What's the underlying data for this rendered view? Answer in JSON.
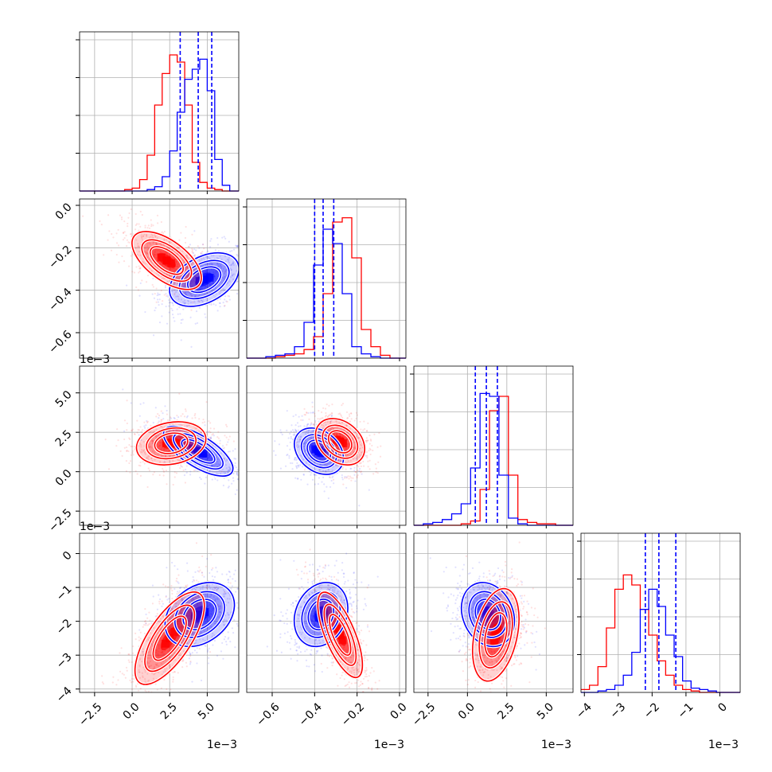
{
  "chart_data": {
    "type": "corner",
    "title": "",
    "n_params": 4,
    "series": [
      {
        "name": "",
        "color": "#ff0000"
      },
      {
        "name": "",
        "color": "#0000ff"
      }
    ],
    "axis_ranges": [
      [
        -0.0035,
        0.0071
      ],
      [
        -0.00072,
        3e-05
      ],
      [
        -0.0034,
        0.0067
      ],
      [
        -0.0041,
        0.0006
      ]
    ],
    "axis_ticks": [
      {
        "values": [
          -0.0025,
          0.0,
          0.0025,
          0.005
        ],
        "labels": [
          "−2.5",
          "0.0",
          "2.5",
          "5.0"
        ],
        "offset": "1e−3"
      },
      {
        "values": [
          -0.0006,
          -0.0004,
          -0.0002,
          0.0
        ],
        "labels": [
          "−0.6",
          "−0.4",
          "−0.2",
          "0.0"
        ],
        "offset": "1e−3"
      },
      {
        "values": [
          -0.0025,
          0.0,
          0.0025,
          0.005
        ],
        "labels": [
          "−2.5",
          "0.0",
          "2.5",
          "5.0"
        ],
        "offset": "1e−3"
      },
      {
        "values": [
          -0.004,
          -0.003,
          -0.002,
          -0.001,
          0.0
        ],
        "labels": [
          "−4",
          "−3",
          "−2",
          "−1",
          "0"
        ],
        "offset": "1e−3"
      }
    ],
    "marginals": [
      {
        "bin_edges": [
          -0.0035,
          -0.003,
          -0.0025,
          -0.002,
          -0.0015,
          -0.001,
          -0.0005,
          0.0,
          0.0005,
          0.001,
          0.0015,
          0.002,
          0.0025,
          0.003,
          0.0035,
          0.004,
          0.0045,
          0.005,
          0.0055,
          0.006,
          0.0065,
          0.0071
        ],
        "red_counts": [
          0,
          0,
          0,
          0,
          0,
          0,
          1,
          2,
          8,
          25,
          60,
          82,
          95,
          90,
          60,
          20,
          6,
          2,
          1,
          0,
          0
        ],
        "blue_counts": [
          0,
          0,
          0,
          0,
          0,
          0,
          0,
          0,
          0,
          1,
          3,
          10,
          28,
          55,
          78,
          85,
          92,
          70,
          22,
          4,
          0
        ],
        "ylim": [
          0,
          100
        ],
        "quantiles": [
          0.0032,
          0.0044,
          0.0053
        ]
      },
      {
        "bin_edges": [
          -0.00072,
          -0.000675,
          -0.00063,
          -0.000585,
          -0.00054,
          -0.000495,
          -0.00045,
          -0.000405,
          -0.00036,
          -0.000315,
          -0.00027,
          -0.000225,
          -0.00018,
          -0.000135,
          -9e-05,
          -4.5e-05,
          0.0,
          3e-05
        ],
        "red_counts": [
          0,
          0,
          0,
          1,
          2,
          3,
          6,
          15,
          45,
          95,
          98,
          70,
          20,
          8,
          2,
          0,
          0
        ],
        "blue_counts": [
          0,
          0,
          1,
          2,
          3,
          8,
          25,
          65,
          90,
          80,
          45,
          8,
          3,
          1,
          0,
          0,
          0
        ],
        "ylim": [
          0,
          100
        ],
        "quantiles": [
          -0.0004,
          -0.00036,
          -0.00031
        ]
      },
      {
        "bin_edges": [
          -0.0034,
          -0.0028,
          -0.0022,
          -0.0016,
          -0.001,
          -0.0004,
          0.0002,
          0.0008,
          0.0014,
          0.002,
          0.0026,
          0.0032,
          0.0038,
          0.0044,
          0.005,
          0.0056,
          0.0062,
          0.0067
        ],
        "red_counts": [
          0,
          0,
          0,
          0,
          0,
          1,
          3,
          25,
          80,
          90,
          35,
          4,
          2,
          1,
          1,
          0,
          0
        ],
        "blue_counts": [
          0,
          1,
          2,
          4,
          8,
          15,
          40,
          92,
          90,
          35,
          5,
          1,
          0,
          0,
          0,
          0,
          0
        ],
        "ylim": [
          0,
          100
        ],
        "quantiles": [
          0.0005,
          0.0012,
          0.0019
        ]
      },
      {
        "bin_edges": [
          -0.0041,
          -0.00385,
          -0.0036,
          -0.00335,
          -0.0031,
          -0.00285,
          -0.0026,
          -0.00235,
          -0.0021,
          -0.00185,
          -0.0016,
          -0.00135,
          -0.0011,
          -0.00085,
          -0.0006,
          -0.00035,
          -0.0001,
          0.0001,
          0.0006
        ],
        "red_counts": [
          2,
          5,
          18,
          45,
          72,
          82,
          75,
          58,
          40,
          22,
          12,
          5,
          2,
          1,
          0,
          0,
          0,
          0
        ],
        "blue_counts": [
          0,
          0,
          1,
          2,
          5,
          12,
          28,
          58,
          72,
          60,
          40,
          25,
          8,
          3,
          2,
          1,
          0,
          0
        ],
        "ylim": [
          0,
          100
        ],
        "quantiles": [
          -0.0022,
          -0.0018,
          -0.0013
        ]
      }
    ],
    "joints": [
      {
        "x": 0,
        "y": 1,
        "red": {
          "mean": [
            0.0023,
            -0.00026
          ],
          "sd": [
            0.0011,
            6.5e-05
          ],
          "rho": -0.6
        },
        "blue": {
          "mean": [
            0.0048,
            -0.00035
          ],
          "sd": [
            0.0011,
            6e-05
          ],
          "rho": 0.4
        }
      },
      {
        "x": 0,
        "y": 2,
        "red": {
          "mean": [
            0.0026,
            0.0018
          ],
          "sd": [
            0.0011,
            0.00065
          ],
          "rho": 0.2
        },
        "blue": {
          "mean": [
            0.0044,
            0.0013
          ],
          "sd": [
            0.0011,
            0.00075
          ],
          "rho": -0.7
        }
      },
      {
        "x": 1,
        "y": 2,
        "red": {
          "mean": [
            -0.00028,
            0.0019
          ],
          "sd": [
            5.5e-05,
            0.0007
          ],
          "rho": -0.3
        },
        "blue": {
          "mean": [
            -0.00038,
            0.0013
          ],
          "sd": [
            5.5e-05,
            0.0007
          ],
          "rho": -0.3
        }
      },
      {
        "x": 0,
        "y": 3,
        "red": {
          "mean": [
            0.0025,
            -0.0025
          ],
          "sd": [
            0.0011,
            0.00065
          ],
          "rho": 0.7
        },
        "blue": {
          "mean": [
            0.0045,
            -0.0018
          ],
          "sd": [
            0.0011,
            0.00045
          ],
          "rho": 0.3
        }
      },
      {
        "x": 1,
        "y": 3,
        "red": {
          "mean": [
            -0.00028,
            -0.0024
          ],
          "sd": [
            5e-05,
            0.0006
          ],
          "rho": -0.7
        },
        "blue": {
          "mean": [
            -0.00037,
            -0.0018
          ],
          "sd": [
            6e-05,
            0.00045
          ],
          "rho": 0.2
        }
      },
      {
        "x": 2,
        "y": 3,
        "red": {
          "mean": [
            0.0018,
            -0.0024
          ],
          "sd": [
            0.0007,
            0.00065
          ],
          "rho": 0.35
        },
        "blue": {
          "mean": [
            0.0013,
            -0.0018
          ],
          "sd": [
            0.0008,
            0.00045
          ],
          "rho": -0.2
        }
      }
    ]
  }
}
